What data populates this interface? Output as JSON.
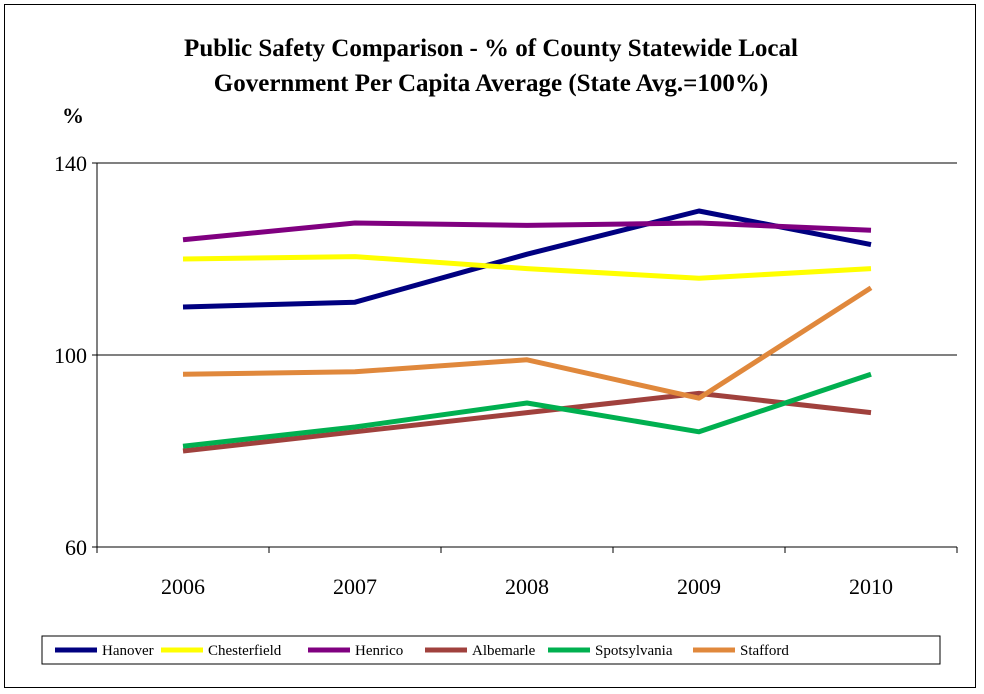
{
  "chart_data": {
    "type": "line",
    "title_lines": [
      "Public Safety Comparison - % of County Statewide Local",
      "Government Per Capita Average (State Avg.=100%)"
    ],
    "xlabel": "",
    "ylabel": "%",
    "categories": [
      "2006",
      "2007",
      "2008",
      "2009",
      "2010"
    ],
    "ylim": [
      60,
      140
    ],
    "yticks": [
      60,
      100,
      140
    ],
    "gridlines": [
      100,
      140
    ],
    "legend_position": "bottom",
    "series": [
      {
        "name": "Hanover",
        "color": "#000080",
        "values": [
          110,
          111,
          121,
          130,
          123
        ]
      },
      {
        "name": "Chesterfield",
        "color": "#ffff00",
        "values": [
          120,
          120.5,
          118,
          116,
          118
        ]
      },
      {
        "name": "Henrico",
        "color": "#800080",
        "values": [
          124,
          127.5,
          127,
          127.5,
          126
        ]
      },
      {
        "name": "Albemarle",
        "color": "#a0413d",
        "values": [
          80,
          84,
          88,
          92,
          88
        ]
      },
      {
        "name": "Spotsylvania",
        "color": "#00b050",
        "values": [
          81,
          85,
          90,
          84,
          96
        ]
      },
      {
        "name": "Stafford",
        "color": "#e0883c",
        "values": [
          96,
          96.5,
          99,
          91,
          114
        ]
      }
    ]
  }
}
